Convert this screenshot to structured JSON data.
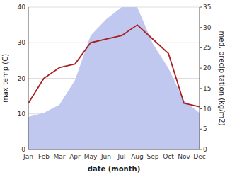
{
  "chart_data": {
    "type": "line",
    "xlabel": "date (month)",
    "ylabel": "max temp (C)",
    "y2label": "med. precipitation (kg/m2)",
    "categories": [
      "Jan",
      "Feb",
      "Mar",
      "Apr",
      "May",
      "Jun",
      "Jul",
      "Aug",
      "Sep",
      "Oct",
      "Nov",
      "Dec"
    ],
    "series": [
      {
        "type": "area",
        "axis": "y2",
        "color": "#c0c8f0",
        "values": [
          8,
          9,
          11,
          17,
          28,
          32,
          35,
          35,
          26,
          20,
          12,
          9
        ]
      },
      {
        "type": "line",
        "color": "#aa2020",
        "values": [
          13,
          20,
          23,
          24,
          30,
          31,
          32,
          35,
          31,
          27,
          13,
          12
        ]
      }
    ],
    "ylim": [
      0,
      40
    ],
    "yticks": [
      0,
      10,
      20,
      30,
      40
    ],
    "y2lim": [
      0,
      35
    ],
    "y2ticks": [
      0,
      5,
      10,
      15,
      20,
      25,
      30,
      35
    ],
    "grid": true
  }
}
